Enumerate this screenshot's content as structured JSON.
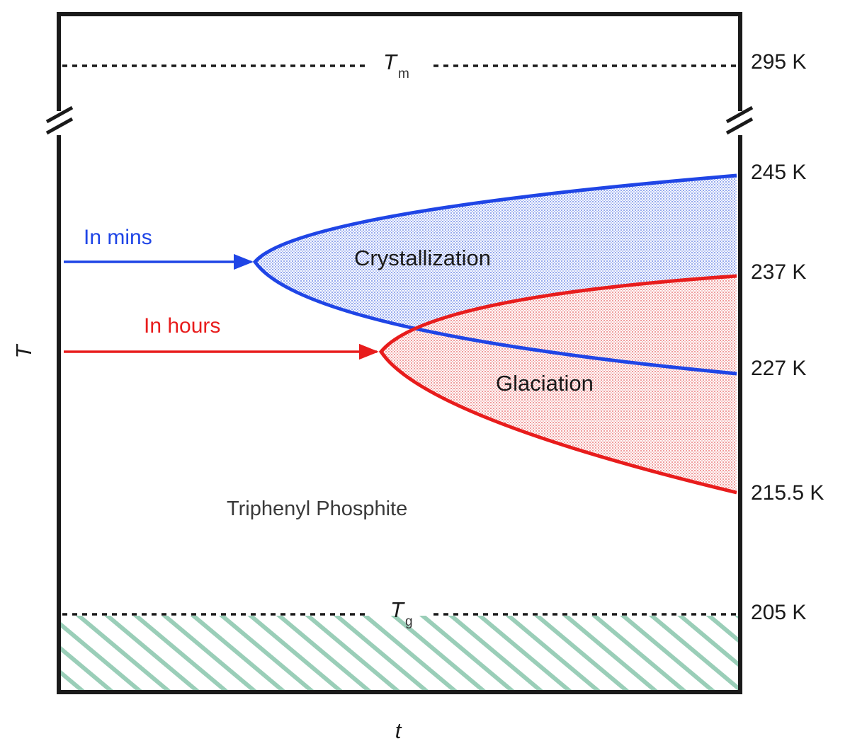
{
  "colors": {
    "frame": "#1a1a1a",
    "crystallization": "#1f45e6",
    "glaciation": "#e81c1c",
    "glass_hatch": "#5fae8e",
    "dashed": "#1a1a1a"
  },
  "axes": {
    "x_label": "t",
    "y_label": "T"
  },
  "reference_lines": {
    "melting": {
      "symbol": "T",
      "subscript": "m",
      "value_label": "295 K"
    },
    "glass": {
      "symbol": "T",
      "subscript": "g",
      "value_label": "205 K"
    }
  },
  "temperature_labels": [
    "245 K",
    "237 K",
    "227 K",
    "215.5 K"
  ],
  "regions": {
    "crystallization": {
      "label": "Crystallization",
      "upper": "245 K",
      "lower": "227 K",
      "arrow_label": "In mins"
    },
    "glaciation": {
      "label": "Glaciation",
      "upper": "237 K",
      "lower": "215.5 K",
      "arrow_label": "In hours"
    }
  },
  "substance_label": "Triphenyl Phosphite"
}
